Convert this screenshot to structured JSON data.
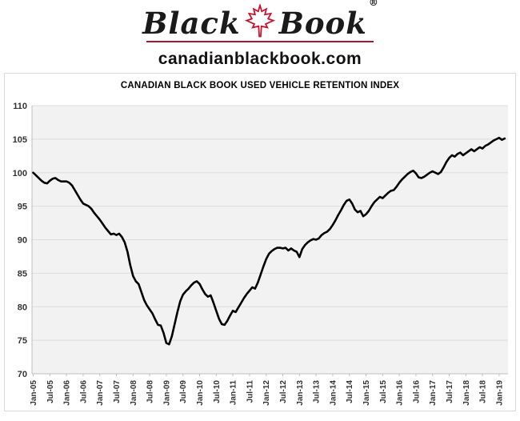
{
  "header": {
    "logo_word1": "Black",
    "logo_word2": "Book",
    "reg_mark": "®",
    "site": "canadianblackbook.com",
    "leaf_icon": "maple-leaf-icon",
    "colors": {
      "logo_text": "#1a1a1a",
      "leaf_red": "#c8102e",
      "underline_red": "#a6192e"
    }
  },
  "chart": {
    "title": "CANADIAN BLACK BOOK USED VEHICLE RETENTION INDEX"
  },
  "chart_data": {
    "type": "line",
    "title": "CANADIAN BLACK BOOK USED VEHICLE RETENTION INDEX",
    "xlabel": "",
    "ylabel": "",
    "ylim": [
      70,
      110
    ],
    "y_step": 5,
    "y_ticks": [
      110,
      105,
      100,
      95,
      90,
      85,
      80,
      75,
      70
    ],
    "grid": "horizontal",
    "legend": "none",
    "x_monthly_start": "Jan-2005",
    "x_monthly_end": "Mar-2019",
    "months_per_tick": 6,
    "x_tick_labels": [
      "Jan-05",
      "Jul-05",
      "Jan-06",
      "Jul-06",
      "Jan-07",
      "Jul-07",
      "Jan-08",
      "Jul-08",
      "Jan-09",
      "Jul-09",
      "Jan-10",
      "Jul-10",
      "Jan-11",
      "Jul-11",
      "Jan-12",
      "Jul-12",
      "Jan-13",
      "Jul-13",
      "Jan-14",
      "Jul-14",
      "Jan-15",
      "Jul-15",
      "Jan-16",
      "Jul-16",
      "Jan-17",
      "Jul-17",
      "Jan-18",
      "Jul-18",
      "Jan-19"
    ],
    "series": [
      {
        "name": "Used Vehicle Retention Index",
        "color": "#000000",
        "values": [
          100.0,
          99.6,
          99.2,
          98.8,
          98.5,
          98.4,
          98.8,
          99.1,
          99.2,
          98.9,
          98.7,
          98.7,
          98.7,
          98.5,
          98.1,
          97.4,
          96.7,
          96.0,
          95.4,
          95.2,
          95.0,
          94.6,
          94.0,
          93.5,
          93.0,
          92.4,
          91.8,
          91.3,
          90.8,
          90.9,
          90.7,
          90.9,
          90.4,
          89.6,
          88.2,
          86.2,
          84.6,
          83.8,
          83.4,
          82.2,
          81.0,
          80.2,
          79.6,
          79.0,
          78.1,
          77.3,
          77.2,
          76.1,
          74.6,
          74.4,
          75.6,
          77.4,
          79.2,
          80.8,
          81.8,
          82.3,
          82.7,
          83.2,
          83.6,
          83.8,
          83.4,
          82.6,
          81.9,
          81.5,
          81.7,
          80.6,
          79.4,
          78.2,
          77.4,
          77.3,
          77.9,
          78.7,
          79.4,
          79.2,
          79.9,
          80.6,
          81.3,
          81.9,
          82.4,
          82.9,
          82.7,
          83.6,
          84.8,
          86.0,
          87.1,
          87.9,
          88.3,
          88.6,
          88.8,
          88.8,
          88.7,
          88.8,
          88.4,
          88.7,
          88.4,
          88.2,
          87.4,
          88.6,
          89.2,
          89.6,
          89.9,
          90.1,
          90.0,
          90.2,
          90.7,
          91.0,
          91.2,
          91.6,
          92.2,
          92.9,
          93.7,
          94.4,
          95.2,
          95.8,
          96.0,
          95.4,
          94.5,
          94.1,
          94.3,
          93.5,
          93.8,
          94.3,
          95.0,
          95.6,
          96.0,
          96.4,
          96.2,
          96.6,
          97.0,
          97.3,
          97.4,
          97.9,
          98.5,
          99.0,
          99.4,
          99.8,
          100.1,
          100.3,
          99.9,
          99.3,
          99.2,
          99.4,
          99.7,
          100.0,
          100.2,
          100.0,
          99.8,
          100.1,
          100.8,
          101.6,
          102.2,
          102.6,
          102.4,
          102.8,
          103.0,
          102.6,
          102.9,
          103.2,
          103.5,
          103.2,
          103.5,
          103.8,
          103.6,
          104.0,
          104.2,
          104.5,
          104.8,
          105.0,
          105.2,
          104.9,
          105.1
        ]
      }
    ],
    "style": {
      "plot_bg": "#f2f2f2",
      "grid_color": "#dcdcdc",
      "axis_color": "#bfbfbf",
      "tick_label_color": "#333333",
      "line_width": 2.6
    }
  }
}
